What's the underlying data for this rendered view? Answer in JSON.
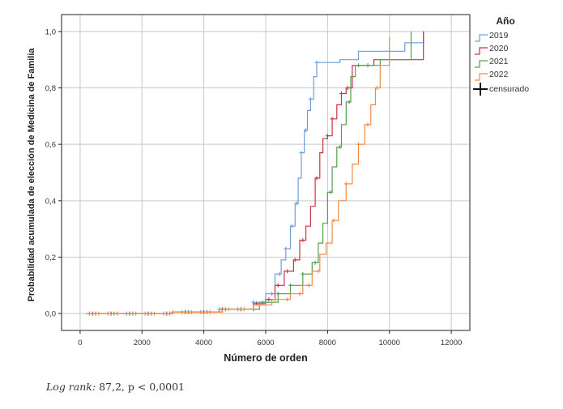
{
  "chart_data": {
    "type": "line",
    "title": "",
    "xlabel": "Número de orden",
    "ylabel": "Probabilidad acumulada de elección de Medicina de Familia",
    "xlim": [
      -600,
      12600
    ],
    "ylim": [
      -0.06,
      1.06
    ],
    "xticks": [
      0,
      2000,
      4000,
      6000,
      8000,
      10000,
      12000
    ],
    "xtick_labels": [
      "0",
      "2000",
      "4000",
      "6000",
      "8000",
      "10000",
      "12000"
    ],
    "yticks": [
      0.0,
      0.2,
      0.4,
      0.6,
      0.8,
      1.0
    ],
    "ytick_labels": [
      "0,0",
      "0,2",
      "0,4",
      "0,6",
      "0,8",
      "1,0"
    ],
    "grid": true,
    "step": true,
    "legend": {
      "title": "Año",
      "position": "top-right",
      "censor_label": "censurado"
    },
    "series": [
      {
        "name": "2019",
        "color": "#6f9fd8",
        "x": [
          200,
          3000,
          4500,
          5600,
          6000,
          6300,
          6500,
          6650,
          6800,
          6950,
          7050,
          7150,
          7250,
          7350,
          7450,
          7550,
          7650,
          7750,
          7900,
          8400,
          9000,
          10500,
          11100
        ],
        "y": [
          0.0,
          0.005,
          0.015,
          0.04,
          0.07,
          0.14,
          0.19,
          0.23,
          0.31,
          0.39,
          0.48,
          0.57,
          0.65,
          0.72,
          0.76,
          0.84,
          0.89,
          0.89,
          0.89,
          0.9,
          0.93,
          0.96,
          1.0
        ],
        "censored_x": [
          300,
          900,
          1500,
          2100,
          2700,
          3300,
          3900,
          4500,
          5100,
          5600,
          5900,
          6200,
          6450,
          6650,
          6850,
          7000,
          7150,
          7300,
          7450,
          7650
        ]
      },
      {
        "name": "2020",
        "color": "#c8334a",
        "x": [
          200,
          3000,
          4600,
          5600,
          6000,
          6300,
          6600,
          6900,
          7100,
          7300,
          7450,
          7600,
          7750,
          7850,
          8000,
          8150,
          8300,
          8450,
          8600,
          8800,
          9500,
          11100
        ],
        "y": [
          0.0,
          0.005,
          0.015,
          0.035,
          0.05,
          0.1,
          0.15,
          0.19,
          0.26,
          0.31,
          0.38,
          0.48,
          0.57,
          0.62,
          0.63,
          0.69,
          0.74,
          0.78,
          0.8,
          0.88,
          0.9,
          1.0
        ],
        "censored_x": [
          400,
          1000,
          1600,
          2200,
          2800,
          3400,
          4000,
          4600,
          5200,
          5700,
          6100,
          6400,
          6700,
          6950,
          7200,
          7650,
          8000,
          8150,
          8450,
          8650
        ]
      },
      {
        "name": "2021",
        "color": "#55a04a",
        "x": [
          200,
          3000,
          4600,
          5800,
          6400,
          6800,
          7200,
          7500,
          7700,
          7850,
          8000,
          8150,
          8300,
          8450,
          8600,
          8750,
          8900,
          9200,
          9700,
          10700
        ],
        "y": [
          0.0,
          0.005,
          0.015,
          0.04,
          0.07,
          0.1,
          0.14,
          0.18,
          0.25,
          0.32,
          0.43,
          0.52,
          0.59,
          0.67,
          0.75,
          0.84,
          0.88,
          0.88,
          0.9,
          1.0
        ],
        "censored_x": [
          500,
          1100,
          1700,
          2300,
          2900,
          3500,
          4100,
          4700,
          5200,
          5600,
          6000,
          6400,
          6800,
          7200,
          7600,
          8100,
          8400,
          8700,
          9000,
          9300
        ]
      },
      {
        "name": "2022",
        "color": "#f08a4a",
        "x": [
          200,
          3000,
          4600,
          5600,
          6200,
          6800,
          7200,
          7500,
          7750,
          7950,
          8150,
          8350,
          8600,
          8800,
          9000,
          9200,
          9400,
          9550,
          9700,
          10000
        ],
        "y": [
          0.0,
          0.005,
          0.015,
          0.03,
          0.05,
          0.07,
          0.1,
          0.15,
          0.21,
          0.25,
          0.33,
          0.4,
          0.46,
          0.53,
          0.6,
          0.67,
          0.74,
          0.8,
          0.88,
          0.98
        ],
        "censored_x": [
          600,
          1200,
          1800,
          2400,
          3000,
          3600,
          4200,
          4800,
          5300,
          5800,
          6300,
          6700,
          7100,
          7400,
          7700,
          8200,
          8600,
          9000,
          9300,
          9600
        ]
      }
    ]
  },
  "footnote": {
    "stat_label": "Log rank:",
    "stat_value": "87,2, p < 0,0001"
  }
}
